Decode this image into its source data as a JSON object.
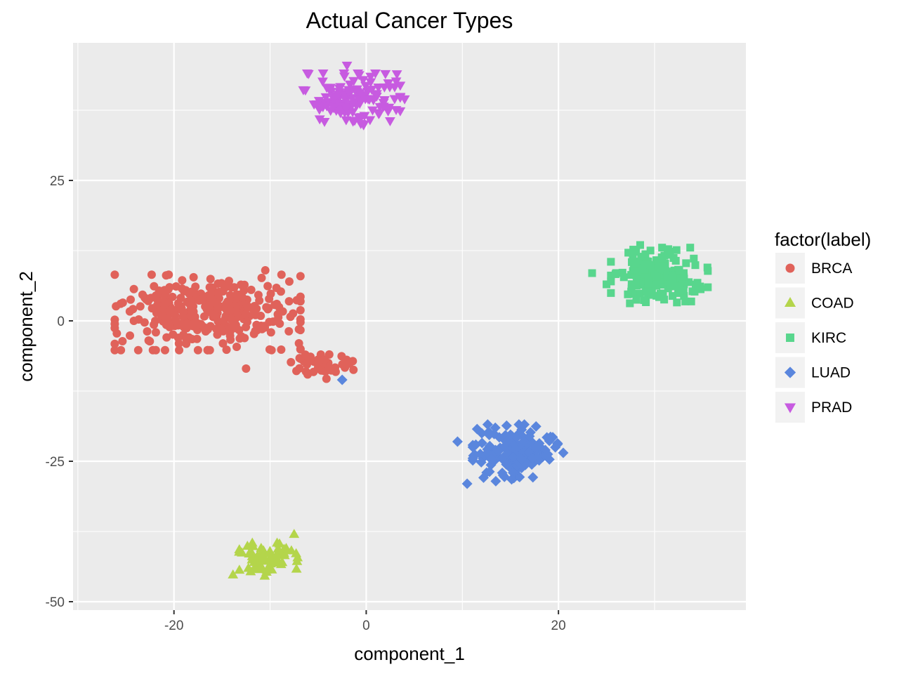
{
  "chart_data": {
    "type": "scatter",
    "title": "Actual Cancer Types",
    "xlabel": "component_1",
    "ylabel": "component_2",
    "xlim": [
      -30.5,
      39.5
    ],
    "ylim": [
      -51.5,
      49.5
    ],
    "x_ticks": [
      {
        "value": -20,
        "label": "-20"
      },
      {
        "value": 0,
        "label": "0"
      },
      {
        "value": 20,
        "label": "20"
      }
    ],
    "y_ticks": [
      {
        "value": 25,
        "label": "25"
      },
      {
        "value": 0,
        "label": "0"
      },
      {
        "value": -25,
        "label": "-25"
      },
      {
        "value": -50,
        "label": "-50"
      }
    ],
    "grid": true,
    "legend_title": "factor(label)",
    "legend_position": "right",
    "series": [
      {
        "name": "BRCA",
        "color": "#E0625A",
        "shape": "circle",
        "clusters": [
          {
            "cx": -16.5,
            "cy": 1.5,
            "sx": 4.6,
            "sy": 3.2,
            "n": 330
          },
          {
            "cx": -4.5,
            "cy": -8.0,
            "sx": 1.6,
            "sy": 1.1,
            "n": 45
          }
        ],
        "points": [
          [
            -12.5,
            -8.5
          ],
          [
            -10.5,
            9.0
          ],
          [
            -8.0,
            7.0
          ],
          [
            -9.0,
            -0.5
          ],
          [
            -7.0,
            -1.5
          ],
          [
            -7.0,
            -4.0
          ]
        ]
      },
      {
        "name": "COAD",
        "color": "#B4D54B",
        "shape": "triangle-up",
        "clusters": [
          {
            "cx": -10.5,
            "cy": -42.5,
            "sx": 1.6,
            "sy": 1.4,
            "n": 75
          }
        ],
        "points": [
          [
            -7.5,
            -38.0
          ]
        ]
      },
      {
        "name": "KIRC",
        "color": "#58D68D",
        "shape": "square",
        "clusters": [
          {
            "cx": 30.5,
            "cy": 8.0,
            "sx": 2.4,
            "sy": 2.4,
            "n": 185
          }
        ],
        "points": [
          [
            23.5,
            8.5
          ],
          [
            25.0,
            6.5
          ],
          [
            35.5,
            9.5
          ],
          [
            28.5,
            13.5
          ]
        ]
      },
      {
        "name": "LUAD",
        "color": "#5A86DD",
        "shape": "diamond",
        "clusters": [
          {
            "cx": 15.5,
            "cy": -23.5,
            "sx": 2.1,
            "sy": 2.4,
            "n": 150
          }
        ],
        "points": [
          [
            -2.5,
            -10.5
          ],
          [
            9.5,
            -21.5
          ],
          [
            10.5,
            -29.0
          ],
          [
            20.5,
            -23.5
          ]
        ]
      },
      {
        "name": "PRAD",
        "color": "#C75BE0",
        "shape": "triangle-down",
        "clusters": [
          {
            "cx": -1.5,
            "cy": 39.5,
            "sx": 2.4,
            "sy": 2.2,
            "n": 130
          }
        ],
        "points": [
          [
            -6.0,
            44.0
          ],
          [
            -2.0,
            45.5
          ],
          [
            2.0,
            44.0
          ],
          [
            4.0,
            39.5
          ]
        ]
      }
    ]
  }
}
